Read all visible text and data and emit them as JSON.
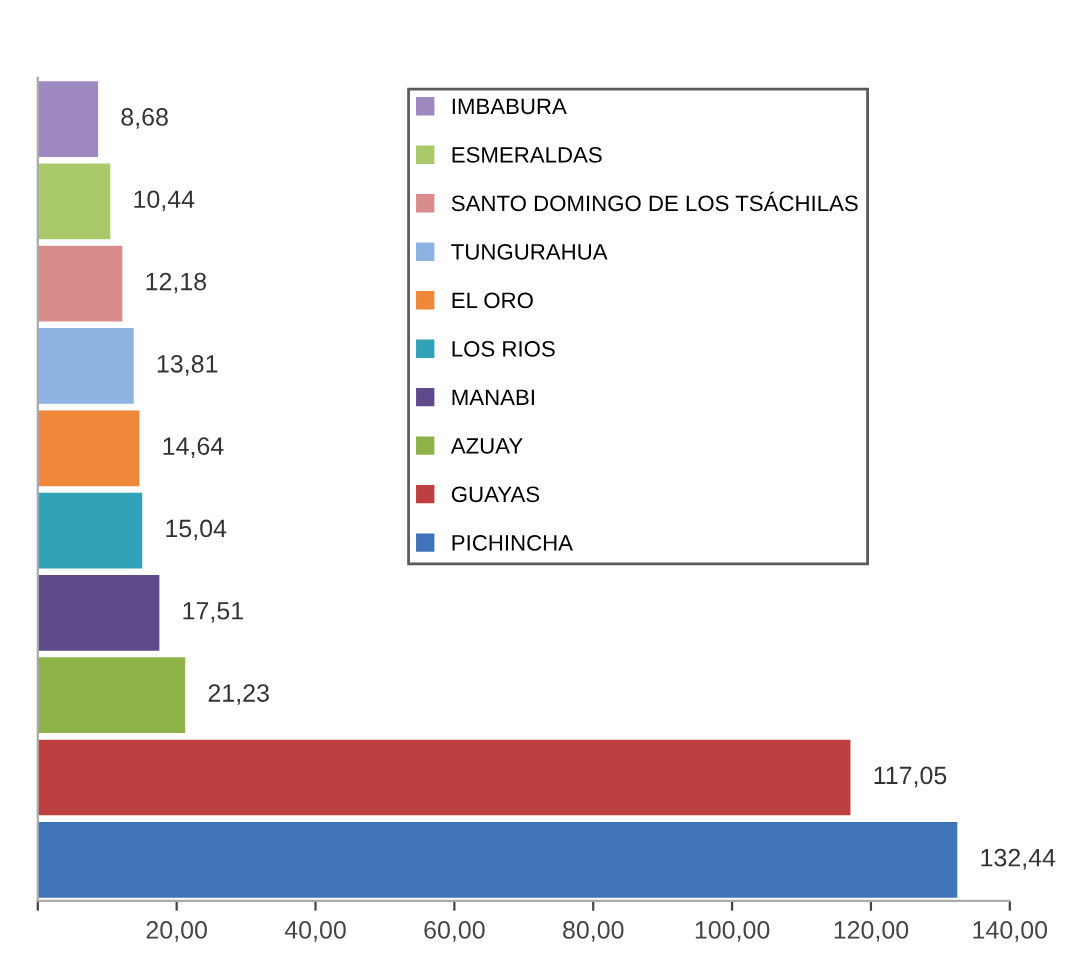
{
  "chart_data": {
    "type": "bar",
    "orientation": "horizontal",
    "categories": [
      null,
      null,
      null,
      null,
      null,
      null,
      null,
      null,
      null,
      null
    ],
    "series": [
      {
        "name": "IMBABURA",
        "color": "#9e88c0",
        "values": [
          8.68,
          null,
          null,
          null,
          null,
          null,
          null,
          null,
          null,
          null
        ],
        "value_labels": [
          "8,68",
          null,
          null,
          null,
          null,
          null,
          null,
          null,
          null,
          null
        ]
      },
      {
        "name": "ESMERALDAS",
        "color": "#a9c96b",
        "values": [
          null,
          10.44,
          null,
          null,
          null,
          null,
          null,
          null,
          null,
          null
        ],
        "value_labels": [
          null,
          "10,44",
          null,
          null,
          null,
          null,
          null,
          null,
          null,
          null
        ]
      },
      {
        "name": "SANTO DOMINGO DE LOS TSÁCHILAS",
        "color": "#d98c8c",
        "values": [
          null,
          null,
          12.18,
          null,
          null,
          null,
          null,
          null,
          null,
          null
        ],
        "value_labels": [
          null,
          null,
          "12,18",
          null,
          null,
          null,
          null,
          null,
          null,
          null
        ]
      },
      {
        "name": "TUNGURAHUA",
        "color": "#8db3e2",
        "values": [
          null,
          null,
          null,
          13.81,
          null,
          null,
          null,
          null,
          null,
          null
        ],
        "value_labels": [
          null,
          null,
          null,
          "13,81",
          null,
          null,
          null,
          null,
          null,
          null
        ]
      },
      {
        "name": "EL ORO",
        "color": "#f0883a",
        "values": [
          null,
          null,
          null,
          null,
          14.64,
          null,
          null,
          null,
          null,
          null
        ],
        "value_labels": [
          null,
          null,
          null,
          null,
          "14,64",
          null,
          null,
          null,
          null,
          null
        ]
      },
      {
        "name": "LOS RIOS",
        "color": "#31a2b8",
        "values": [
          null,
          null,
          null,
          null,
          null,
          15.04,
          null,
          null,
          null,
          null
        ],
        "value_labels": [
          null,
          null,
          null,
          null,
          null,
          "15,04",
          null,
          null,
          null,
          null
        ]
      },
      {
        "name": "MANABI",
        "color": "#5f4b8b",
        "values": [
          null,
          null,
          null,
          null,
          null,
          null,
          17.51,
          null,
          null,
          null
        ],
        "value_labels": [
          null,
          null,
          null,
          null,
          null,
          null,
          "17,51",
          null,
          null,
          null
        ]
      },
      {
        "name": "AZUAY",
        "color": "#8db247",
        "values": [
          null,
          null,
          null,
          null,
          null,
          null,
          null,
          21.23,
          null,
          null
        ],
        "value_labels": [
          null,
          null,
          null,
          null,
          null,
          null,
          null,
          "21,23",
          null,
          null
        ]
      },
      {
        "name": "GUAYAS",
        "color": "#be3f3f",
        "values": [
          null,
          null,
          null,
          null,
          null,
          null,
          null,
          null,
          117.05,
          null
        ],
        "value_labels": [
          null,
          null,
          null,
          null,
          null,
          null,
          null,
          null,
          "117,05",
          null
        ]
      },
      {
        "name": "PICHINCHA",
        "color": "#3f74b8",
        "values": [
          null,
          null,
          null,
          null,
          null,
          null,
          null,
          null,
          null,
          132.44
        ],
        "value_labels": [
          null,
          null,
          null,
          null,
          null,
          null,
          null,
          null,
          null,
          "132,44"
        ]
      }
    ],
    "xlim": [
      0,
      140
    ],
    "xticks": [
      {
        "value": 0,
        "label": null
      },
      {
        "value": 20,
        "label": "20,00"
      },
      {
        "value": 40,
        "label": "40,00"
      },
      {
        "value": 60,
        "label": "60,00"
      },
      {
        "value": 80,
        "label": "80,00"
      },
      {
        "value": 100,
        "label": "100,00"
      },
      {
        "value": 120,
        "label": "120,00"
      },
      {
        "value": 140,
        "label": "140,00"
      }
    ],
    "legend": "top right",
    "grid": false
  }
}
